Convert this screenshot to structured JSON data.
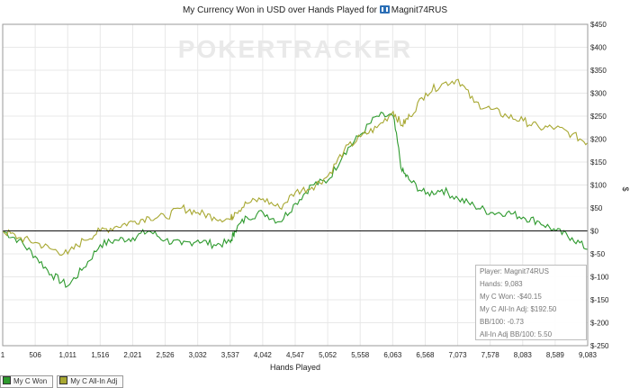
{
  "title": {
    "text": "My Currency Won in USD over Hands Played for",
    "player_icon": "pokertracker-player-icon",
    "player": "Magnit74RUS"
  },
  "watermark": "POKERTRACKER",
  "infobox": {
    "player": "Player: Magnit74RUS",
    "hands": "Hands: 9,083",
    "won": "My C Won: -$40.15",
    "allin": "My C All-In Adj: $192.50",
    "bb100": "BB/100: -0.73",
    "allin_bb100": "All-In Adj BB/100: 5.50"
  },
  "legend": [
    {
      "label": "My C Won",
      "color": "#2e9a2e"
    },
    {
      "label": "My C All-In Adj",
      "color": "#a8a832"
    }
  ],
  "colors": {
    "won": "#2e9a2e",
    "allin": "#a8a832",
    "grid": "#e8e8e8",
    "zero": "#111111"
  },
  "chart_data": {
    "type": "line",
    "title": "My Currency Won in USD over Hands Played for Magnit74RUS",
    "xlabel": "Hands Played",
    "ylabel": "$",
    "xlim": [
      1,
      9083
    ],
    "ylim": [
      -250,
      450
    ],
    "x_ticks": [
      "1",
      "506",
      "1,011",
      "1,516",
      "2,021",
      "2,526",
      "3,032",
      "3,537",
      "4,042",
      "4,547",
      "5,052",
      "5,558",
      "6,063",
      "6,568",
      "7,073",
      "7,578",
      "8,083",
      "8,589",
      "9,083"
    ],
    "y_ticks": [
      "$450",
      "$400",
      "$350",
      "$300",
      "$250",
      "$200",
      "$150",
      "$100",
      "$50",
      "$0",
      "$-50",
      "$-100",
      "$-150",
      "$-200",
      "$-250"
    ],
    "grid": true,
    "legend_position": "bottom-left",
    "x": [
      1,
      250,
      506,
      760,
      1011,
      1260,
      1516,
      1770,
      2021,
      2270,
      2526,
      2780,
      3032,
      3280,
      3537,
      3600,
      3790,
      4042,
      4300,
      4547,
      4800,
      5052,
      5300,
      5558,
      5810,
      6063,
      6200,
      6320,
      6568,
      6820,
      7073,
      7320,
      7578,
      7830,
      8083,
      8330,
      8589,
      8840,
      9083
    ],
    "series": [
      {
        "name": "My C Won",
        "values": [
          0,
          -20,
          -55,
          -95,
          -120,
          -80,
          -30,
          -20,
          -15,
          0,
          -20,
          -30,
          -20,
          -30,
          -25,
          0,
          30,
          40,
          20,
          60,
          100,
          110,
          170,
          210,
          250,
          250,
          130,
          110,
          80,
          90,
          70,
          55,
          40,
          40,
          30,
          20,
          0,
          -15,
          -40
        ]
      },
      {
        "name": "My C All-In Adj",
        "values": [
          0,
          -15,
          -25,
          -40,
          -50,
          -20,
          0,
          10,
          20,
          30,
          30,
          50,
          40,
          30,
          25,
          40,
          60,
          70,
          50,
          85,
          95,
          120,
          175,
          205,
          225,
          260,
          230,
          250,
          300,
          320,
          330,
          280,
          265,
          250,
          240,
          225,
          225,
          210,
          192
        ]
      }
    ]
  }
}
